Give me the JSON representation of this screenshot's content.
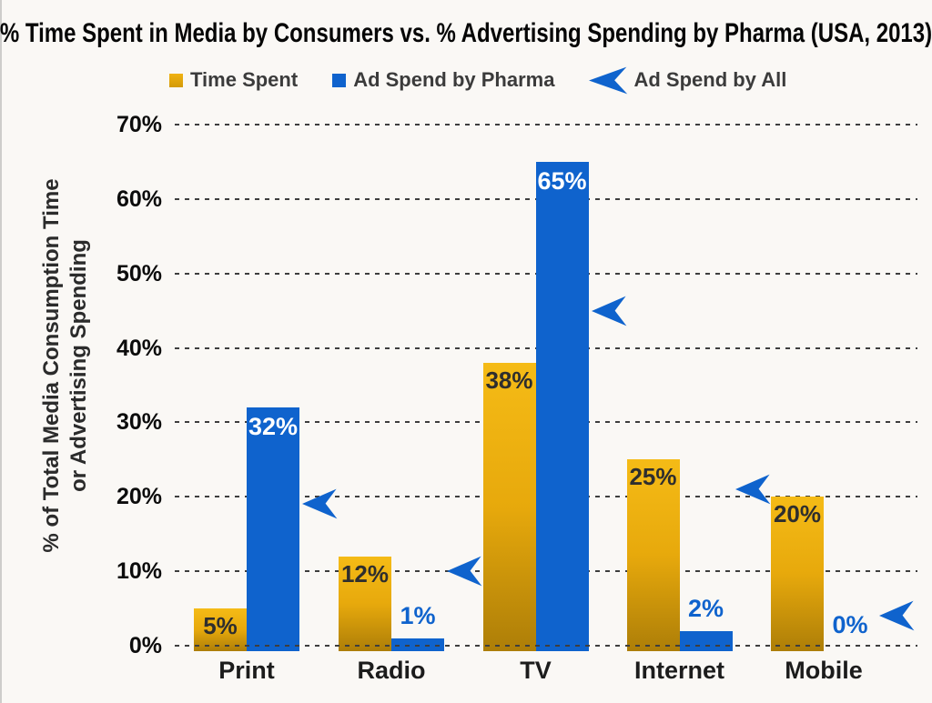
{
  "title": "% Time Spent in Media by Consumers vs. % Advertising Spending by Pharma (USA, 2013)",
  "legend": {
    "items": [
      {
        "label": "Time Spent",
        "marker": "square",
        "color": "#E9A90C"
      },
      {
        "label": "Ad Spend by Pharma",
        "marker": "square",
        "color": "#0F63CD"
      },
      {
        "label": "Ad Spend by All",
        "marker": "triangle-left",
        "color": "#0F63CD"
      }
    ]
  },
  "y_axis": {
    "title_line1": "% of Total Media Consumption Time",
    "title_line2": "or Advertising Spending",
    "ticks": [
      "0%",
      "10%",
      "20%",
      "30%",
      "40%",
      "50%",
      "60%",
      "70%"
    ]
  },
  "chart_data": {
    "type": "bar",
    "title": "% Time Spent in Media by Consumers vs. % Advertising Spending by Pharma (USA, 2013)",
    "categories": [
      "Print",
      "Radio",
      "TV",
      "Internet",
      "Mobile"
    ],
    "series": [
      {
        "name": "Time Spent",
        "type": "bar",
        "color_top": "#F5BB16",
        "color_bottom": "#AD7E08",
        "values": [
          5,
          12,
          38,
          25,
          20
        ],
        "data_labels": [
          "5%",
          "12%",
          "38%",
          "25%",
          "20%"
        ],
        "label_style": "dark-inside-top"
      },
      {
        "name": "Ad Spend by Pharma",
        "type": "bar",
        "color": "#0F63CD",
        "values": [
          32,
          1,
          65,
          2,
          0
        ],
        "data_labels": [
          "32%",
          "1%",
          "65%",
          "2%",
          "0%"
        ],
        "label_style": "white-inside-top-when-tall, blue-above-when-short"
      },
      {
        "name": "Ad Spend by All",
        "type": "scatter",
        "marker": "triangle-left",
        "color": "#0F63CD",
        "values": [
          19,
          10,
          45,
          21,
          4
        ],
        "values_note": "markers are unlabeled; values estimated from gridline positions"
      }
    ],
    "ylabel": "% of Total Media Consumption Time or Advertising Spending",
    "ylim": [
      0,
      70
    ],
    "ytick_step": 10,
    "grid": "dashed-horizontal",
    "legend_position": "top-center"
  },
  "colors": {
    "background": "#FAF8F5",
    "gold_top": "#F5BB16",
    "gold_mid": "#E7A90C",
    "gold_bottom": "#AD7E08",
    "blue": "#0F63CD",
    "bar_label_dark": "#2e2e2e",
    "bar_label_white": "#FFFFFF",
    "grid_line": "#3e3e3e",
    "title_text": "#060606"
  }
}
